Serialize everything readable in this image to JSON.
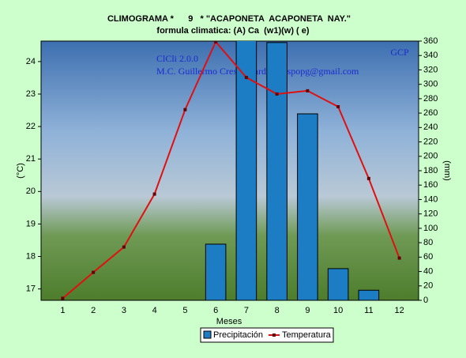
{
  "chart_data": {
    "type": "bar",
    "title": "CLIMOGRAMA *      9   * \"ACAPONETA  ACAPONETA  NAY.\"",
    "subtitle": "formula climatica: (A) Ca  (w1)(w) ( e)",
    "x_label": "Meses",
    "y_label": "(°C)",
    "y2_label": "(mm)",
    "annotations": [
      "ClCli 2.0.0",
      "M.C. Guillermo Crespo Pardo  crespopg@gmail.com",
      "GCP"
    ],
    "categories": [
      "1",
      "2",
      "3",
      "4",
      "5",
      "6",
      "7",
      "8",
      "9",
      "10",
      "11",
      "12"
    ],
    "series": [
      {
        "name": "Precipitación",
        "type": "bar",
        "axis": "y2",
        "color": "#1c7cc4",
        "values": [
          0,
          0,
          0,
          0,
          0,
          78,
          370,
          358,
          259,
          44,
          14,
          0
        ]
      },
      {
        "name": "Temperatura",
        "type": "line",
        "axis": "y",
        "color": "#e01010",
        "values": [
          16.71,
          17.51,
          18.29,
          19.92,
          22.52,
          24.61,
          23.51,
          23.0,
          23.1,
          22.61,
          20.4,
          17.95
        ]
      }
    ],
    "ylim": [
      16.65,
      24.63
    ],
    "yticks": [
      17,
      18,
      19,
      20,
      21,
      22,
      23,
      24
    ],
    "y2lim": [
      0,
      360
    ],
    "y2ticks": [
      0,
      20,
      40,
      60,
      80,
      100,
      120,
      140,
      160,
      180,
      200,
      220,
      240,
      260,
      280,
      300,
      320,
      340,
      360
    ],
    "legend": "bottom"
  }
}
